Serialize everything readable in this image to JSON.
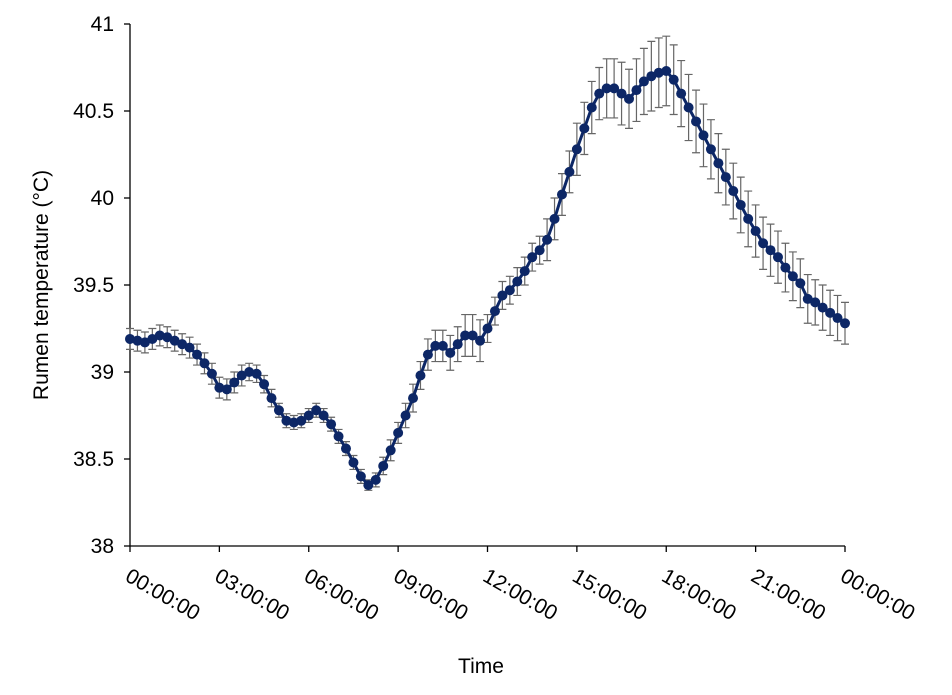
{
  "chart_data": {
    "type": "line",
    "x_label": "Time",
    "y_label": "Rumen temperature (°C)",
    "x": [
      0,
      0.25,
      0.5,
      0.75,
      1,
      1.25,
      1.5,
      1.75,
      2,
      2.25,
      2.5,
      2.75,
      3,
      3.25,
      3.5,
      3.75,
      4,
      4.25,
      4.5,
      4.75,
      5,
      5.25,
      5.5,
      5.75,
      6,
      6.25,
      6.5,
      6.75,
      7,
      7.25,
      7.5,
      7.75,
      8,
      8.25,
      8.5,
      8.75,
      9,
      9.25,
      9.5,
      9.75,
      10,
      10.25,
      10.5,
      10.75,
      11,
      11.25,
      11.5,
      11.75,
      12,
      12.25,
      12.5,
      12.75,
      13,
      13.25,
      13.5,
      13.75,
      14,
      14.25,
      14.5,
      14.75,
      15,
      15.25,
      15.5,
      15.75,
      16,
      16.25,
      16.5,
      16.75,
      17,
      17.25,
      17.5,
      17.75,
      18,
      18.25,
      18.5,
      18.75,
      19,
      19.25,
      19.5,
      19.75,
      20,
      20.25,
      20.5,
      20.75,
      21,
      21.25,
      21.5,
      21.75,
      22,
      22.25,
      22.5,
      22.75,
      23,
      23.25,
      23.5,
      23.75,
      24
    ],
    "series": [
      {
        "name": "Rumen temperature",
        "color": "#0d2766",
        "error_color": "#666666",
        "values": [
          39.19,
          39.18,
          39.17,
          39.19,
          39.21,
          39.2,
          39.18,
          39.16,
          39.14,
          39.1,
          39.05,
          38.99,
          38.91,
          38.9,
          38.94,
          38.98,
          39.0,
          38.99,
          38.93,
          38.85,
          38.78,
          38.72,
          38.71,
          38.72,
          38.75,
          38.78,
          38.75,
          38.7,
          38.63,
          38.56,
          38.48,
          38.4,
          38.35,
          38.38,
          38.46,
          38.55,
          38.65,
          38.75,
          38.85,
          38.98,
          39.1,
          39.15,
          39.15,
          39.11,
          39.16,
          39.21,
          39.21,
          39.18,
          39.25,
          39.35,
          39.44,
          39.47,
          39.52,
          39.58,
          39.66,
          39.7,
          39.76,
          39.88,
          40.02,
          40.15,
          40.28,
          40.4,
          40.52,
          40.6,
          40.63,
          40.63,
          40.6,
          40.57,
          40.62,
          40.67,
          40.7,
          40.72,
          40.73,
          40.68,
          40.6,
          40.52,
          40.44,
          40.36,
          40.28,
          40.2,
          40.12,
          40.04,
          39.96,
          39.88,
          39.81,
          39.74,
          39.7,
          39.66,
          39.6,
          39.55,
          39.51,
          39.42,
          39.4,
          39.37,
          39.34,
          39.31,
          39.28
        ],
        "errors": [
          0.06,
          0.06,
          0.06,
          0.06,
          0.06,
          0.06,
          0.06,
          0.06,
          0.06,
          0.06,
          0.06,
          0.06,
          0.06,
          0.06,
          0.06,
          0.06,
          0.05,
          0.05,
          0.05,
          0.05,
          0.04,
          0.04,
          0.04,
          0.04,
          0.04,
          0.04,
          0.04,
          0.04,
          0.04,
          0.04,
          0.04,
          0.04,
          0.03,
          0.04,
          0.05,
          0.06,
          0.06,
          0.07,
          0.08,
          0.08,
          0.09,
          0.09,
          0.09,
          0.1,
          0.1,
          0.12,
          0.12,
          0.12,
          0.08,
          0.08,
          0.08,
          0.08,
          0.08,
          0.08,
          0.08,
          0.08,
          0.12,
          0.12,
          0.12,
          0.12,
          0.15,
          0.15,
          0.15,
          0.15,
          0.17,
          0.17,
          0.18,
          0.17,
          0.18,
          0.19,
          0.2,
          0.2,
          0.2,
          0.2,
          0.19,
          0.19,
          0.18,
          0.18,
          0.17,
          0.17,
          0.16,
          0.16,
          0.16,
          0.16,
          0.15,
          0.15,
          0.15,
          0.15,
          0.14,
          0.14,
          0.14,
          0.14,
          0.13,
          0.13,
          0.13,
          0.13,
          0.12
        ]
      }
    ],
    "xlim": [
      0,
      24
    ],
    "xticks": [
      {
        "value": 0,
        "label": "00:00:00"
      },
      {
        "value": 3,
        "label": "03:00:00"
      },
      {
        "value": 6,
        "label": "06:00:00"
      },
      {
        "value": 9,
        "label": "09:00:00"
      },
      {
        "value": 12,
        "label": "12:00:00"
      },
      {
        "value": 15,
        "label": "15:00:00"
      },
      {
        "value": 18,
        "label": "18:00:00"
      },
      {
        "value": 21,
        "label": "21:00:00"
      },
      {
        "value": 24,
        "label": "00:00:00"
      }
    ],
    "ylim": [
      38,
      41
    ],
    "yticks": [
      38,
      38.5,
      39,
      39.5,
      40,
      40.5,
      41
    ],
    "grid": false
  }
}
